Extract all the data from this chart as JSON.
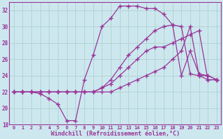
{
  "background_color": "#cce8ee",
  "grid_color": "#aacccc",
  "line_color": "#993399",
  "marker": "+",
  "xlabel": "Windchill (Refroidissement éolien,°C)",
  "xlim": [
    -0.5,
    23.5
  ],
  "ylim": [
    18,
    33
  ],
  "yticks": [
    18,
    20,
    22,
    24,
    26,
    28,
    30,
    32
  ],
  "xticks": [
    0,
    1,
    2,
    3,
    4,
    5,
    6,
    7,
    8,
    9,
    10,
    11,
    12,
    13,
    14,
    15,
    16,
    17,
    18,
    19,
    20,
    21,
    22,
    23
  ],
  "series": [
    {
      "x": [
        0,
        1,
        2,
        3,
        4,
        5,
        6,
        7,
        8,
        9,
        10,
        11,
        12,
        13,
        14,
        15,
        16,
        17,
        18,
        19,
        20,
        21,
        22,
        23
      ],
      "y": [
        22,
        22,
        22,
        21.8,
        21.2,
        20.5,
        18.5,
        18.5,
        23.5,
        26.5,
        30,
        31,
        32.5,
        32.5,
        32.5,
        32.2,
        32.2,
        31.5,
        30.2,
        24,
        27,
        24.2,
        24,
        23.5
      ]
    },
    {
      "x": [
        0,
        1,
        2,
        3,
        4,
        5,
        6,
        7,
        8,
        9,
        10,
        11,
        12,
        13,
        14,
        15,
        16,
        17,
        18,
        19,
        20,
        21,
        22,
        23
      ],
      "y": [
        22,
        22,
        22,
        22,
        22,
        22,
        22,
        22,
        22,
        22,
        22.5,
        23.5,
        25,
        26.5,
        27.5,
        28.5,
        29.5,
        30,
        30.2,
        30,
        24.2,
        24,
        23.5,
        23.5
      ]
    },
    {
      "x": [
        0,
        1,
        2,
        3,
        4,
        5,
        6,
        7,
        8,
        9,
        10,
        11,
        12,
        13,
        14,
        15,
        16,
        17,
        18,
        19,
        20,
        21,
        22,
        23
      ],
      "y": [
        22,
        22,
        22,
        22,
        22,
        22,
        22,
        22,
        22,
        22,
        22.5,
        23,
        24,
        25,
        26,
        27,
        27.5,
        27.5,
        28,
        28.5,
        29,
        29.5,
        23.5,
        23.5
      ]
    },
    {
      "x": [
        0,
        1,
        2,
        3,
        4,
        5,
        6,
        7,
        8,
        9,
        10,
        11,
        12,
        13,
        14,
        15,
        16,
        17,
        18,
        19,
        20,
        21,
        22,
        23
      ],
      "y": [
        22,
        22,
        22,
        22,
        22,
        22,
        22,
        22,
        22,
        22,
        22,
        22,
        22.5,
        23,
        23.5,
        24,
        24.5,
        25,
        26,
        27,
        30,
        24,
        24,
        23.5
      ]
    }
  ]
}
